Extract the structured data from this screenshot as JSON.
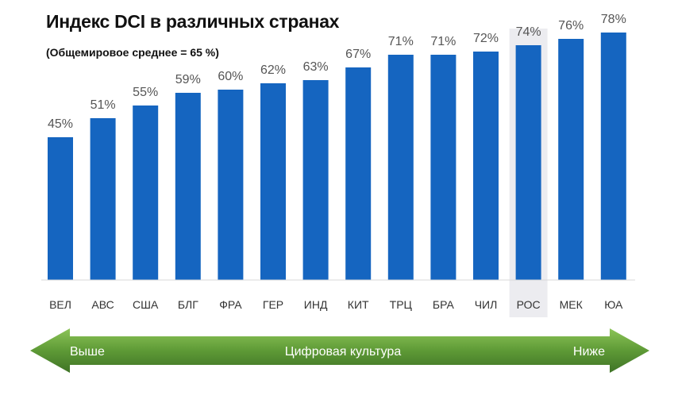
{
  "chart_data": {
    "type": "bar",
    "title": "Индекс DCI в различных странах",
    "subtitle": "(Общемировое среднее = 65 %)",
    "categories": [
      "ВЕЛ",
      "АВС",
      "США",
      "БЛГ",
      "ФРА",
      "ГЕР",
      "ИНД",
      "КИТ",
      "ТРЦ",
      "БРА",
      "ЧИЛ",
      "РОС",
      "МЕК",
      "ЮА"
    ],
    "values": [
      45,
      51,
      55,
      59,
      60,
      62,
      63,
      67,
      71,
      71,
      72,
      74,
      76,
      78
    ],
    "value_labels": [
      "45%",
      "51%",
      "55%",
      "59%",
      "60%",
      "62%",
      "63%",
      "67%",
      "71%",
      "71%",
      "72%",
      "74%",
      "76%",
      "78%"
    ],
    "highlighted_category": "РОС",
    "ylim": [
      0,
      80
    ],
    "grid": false,
    "xlabel": "",
    "ylabel": "",
    "bar_color": "#1565c0",
    "highlight_color": "#ececf0"
  },
  "scale_arrow": {
    "left_label": "Выше",
    "center_label": "Цифровая культура",
    "right_label": "Ниже",
    "color_dark": "#3f7326",
    "color_light": "#76b043"
  }
}
